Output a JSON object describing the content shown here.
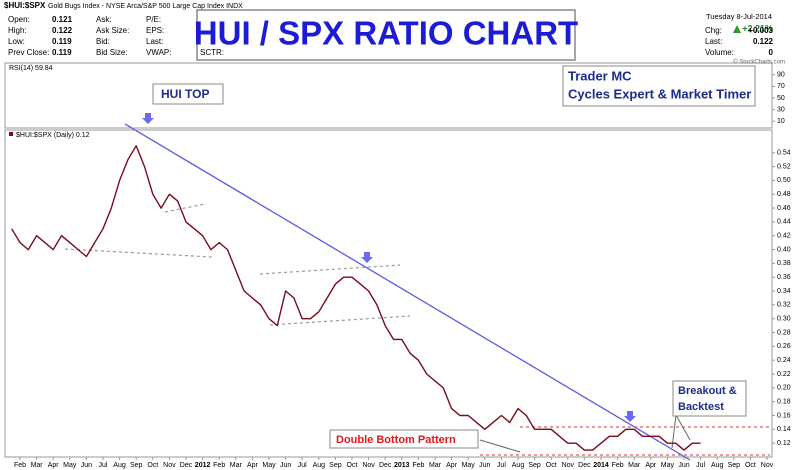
{
  "chart_data": {
    "type": "line",
    "title": "HUI / SPX RATIO CHART",
    "categories": [
      null,
      "Feb",
      null,
      "Mar",
      null,
      "Apr",
      null,
      "May",
      null,
      "Jun",
      null,
      "Jul",
      null,
      "Aug",
      null,
      "Sep",
      null,
      "Oct",
      null,
      "Nov",
      null,
      "Dec",
      null,
      "2012",
      null,
      "Feb",
      null,
      "Mar",
      null,
      "Apr",
      null,
      "May",
      null,
      "Jun",
      null,
      "Jul",
      null,
      "Aug",
      null,
      "Sep",
      null,
      "Oct",
      null,
      "Nov",
      null,
      "Dec",
      null,
      "2013",
      null,
      "Feb",
      null,
      "Mar",
      null,
      "Apr",
      null,
      "May",
      null,
      "Jun",
      null,
      "Jul",
      null,
      "Aug",
      null,
      "Sep",
      null,
      "Oct",
      null,
      "Nov",
      null,
      "Dec",
      null,
      "2014",
      null,
      "Feb",
      null,
      "Mar",
      null,
      "Apr",
      null,
      "May",
      null,
      "Jun",
      null,
      "Jul",
      null,
      "Aug",
      null,
      "Sep",
      null,
      "Oct",
      null,
      "Nov",
      null
    ],
    "series": [
      {
        "name": "$HUI:$SPX (Daily) 0.12",
        "color": "#7a0a1e",
        "values": [
          0.43,
          0.41,
          0.4,
          0.42,
          0.41,
          0.4,
          0.42,
          0.41,
          0.4,
          0.39,
          0.41,
          0.43,
          0.46,
          0.5,
          0.53,
          0.55,
          0.52,
          0.48,
          0.46,
          0.48,
          0.47,
          0.44,
          0.43,
          0.42,
          0.4,
          0.41,
          0.4,
          0.37,
          0.34,
          0.33,
          0.32,
          0.3,
          0.29,
          0.34,
          0.33,
          0.3,
          0.3,
          0.31,
          0.33,
          0.35,
          0.36,
          0.36,
          0.35,
          0.34,
          0.32,
          0.29,
          0.27,
          0.27,
          0.25,
          0.24,
          0.22,
          0.21,
          0.2,
          0.17,
          0.16,
          0.16,
          0.15,
          0.14,
          0.15,
          0.16,
          0.15,
          0.17,
          0.16,
          0.14,
          0.14,
          0.14,
          0.13,
          0.12,
          0.12,
          0.11,
          0.11,
          0.12,
          0.13,
          0.13,
          0.14,
          0.14,
          0.13,
          0.13,
          0.13,
          0.12,
          0.12,
          0.11,
          0.12,
          0.12,
          null,
          null,
          null,
          null,
          null,
          null,
          null,
          null,
          null
        ]
      }
    ],
    "ylim": [
      0.1,
      0.57
    ],
    "yticks": [
      0.12,
      0.14,
      0.16,
      0.18,
      {
        "value": 0.2,
        "label": "0.20"
      },
      0.22,
      0.24,
      0.26,
      0.28,
      {
        "value": 0.3,
        "label": "0.30"
      },
      0.32,
      0.34,
      0.36,
      0.38,
      {
        "value": 0.4,
        "label": "0.40"
      },
      0.42,
      0.44,
      0.46,
      0.48,
      {
        "value": 0.5,
        "label": "0.50"
      },
      0.52,
      0.54
    ]
  },
  "rsi": {
    "label": "RSI(14) 59.84",
    "ylim": [
      0,
      100
    ],
    "yticks": [
      10,
      30,
      50,
      70,
      90
    ]
  },
  "header": {
    "symbol": "$HUI:$SPX",
    "description": "Gold Bugs Index - NYSE Arca/S&P 500 Large Cap Index  INDX",
    "col1": [
      {
        "label": "Open:",
        "value": 0.121
      },
      {
        "label": "High:",
        "value": 0.122
      },
      {
        "label": "Low:",
        "value": 0.119
      },
      {
        "label": "Prev Close:",
        "value": 0.119
      }
    ],
    "col2": [
      "Ask:",
      "Ask Size:",
      "Bid:",
      "Bid Size:"
    ],
    "col3": [
      "P/E:",
      "EPS:",
      "Last:",
      "VWAP:"
    ],
    "col4": "SCTR:",
    "date": "Tuesday  8-Jul-2014",
    "change_pct": "+2.21%",
    "right": [
      {
        "label": "Chg:",
        "value": "+0.003"
      },
      {
        "label": "Last:",
        "value": 0.122
      },
      {
        "label": "Volume:",
        "value": 0
      }
    ],
    "copyright": "© StockCharts.com"
  },
  "annotations": {
    "hui_top": "HUI TOP",
    "trader": "Trader MC",
    "trader_sub": "Cycles Expert & Market Timer",
    "breakout_1": "Breakout &",
    "breakout_2": "Backtest",
    "double_bottom": "Double Bottom Pattern"
  }
}
